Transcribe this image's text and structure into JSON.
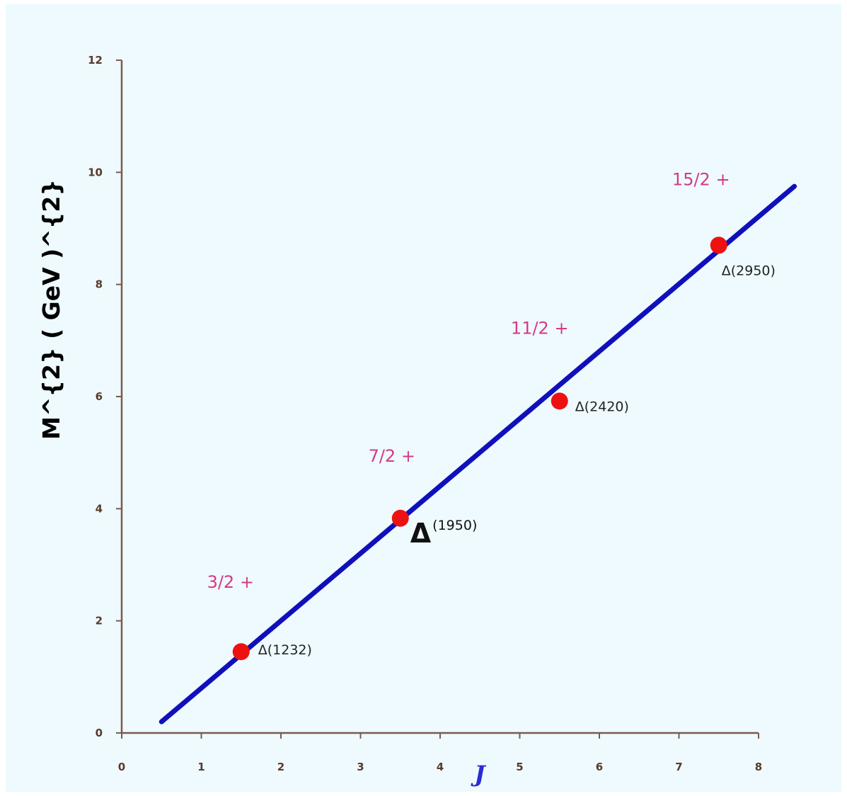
{
  "chart_data": {
    "type": "scatter",
    "xlabel": "J",
    "ylabel": "M^{2} ( GeV )^{2}",
    "xlim": [
      0,
      8
    ],
    "ylim": [
      0,
      12
    ],
    "x_ticks": [
      "0",
      "1",
      "2",
      "3",
      "4",
      "5",
      "6",
      "7",
      "8"
    ],
    "y_ticks": [
      "0",
      "2",
      "4",
      "6",
      "8",
      "10",
      "12"
    ],
    "grid": false,
    "series": [
      {
        "type": "scatter",
        "color": "#ee1111",
        "points": [
          {
            "x": 1.5,
            "y": 1.45,
            "resonance": "Δ(1232)",
            "jp": "3/2 +"
          },
          {
            "x": 3.5,
            "y": 3.83,
            "resonance": "Δ(1950)",
            "jp": "7/2 +"
          },
          {
            "x": 5.5,
            "y": 5.92,
            "resonance": "Δ(2420)",
            "jp": "11/2 +"
          },
          {
            "x": 7.5,
            "y": 8.7,
            "resonance": "Δ(2950)",
            "jp": "15/2 +"
          }
        ]
      },
      {
        "type": "line",
        "color": "#1010bb",
        "x": [
          0.5,
          8.45
        ],
        "y": [
          0.2,
          9.75
        ]
      }
    ],
    "resonance_parts": {
      "Δ(1950)": {
        "symbol": "Δ",
        "superscript": "(1950)"
      }
    }
  }
}
